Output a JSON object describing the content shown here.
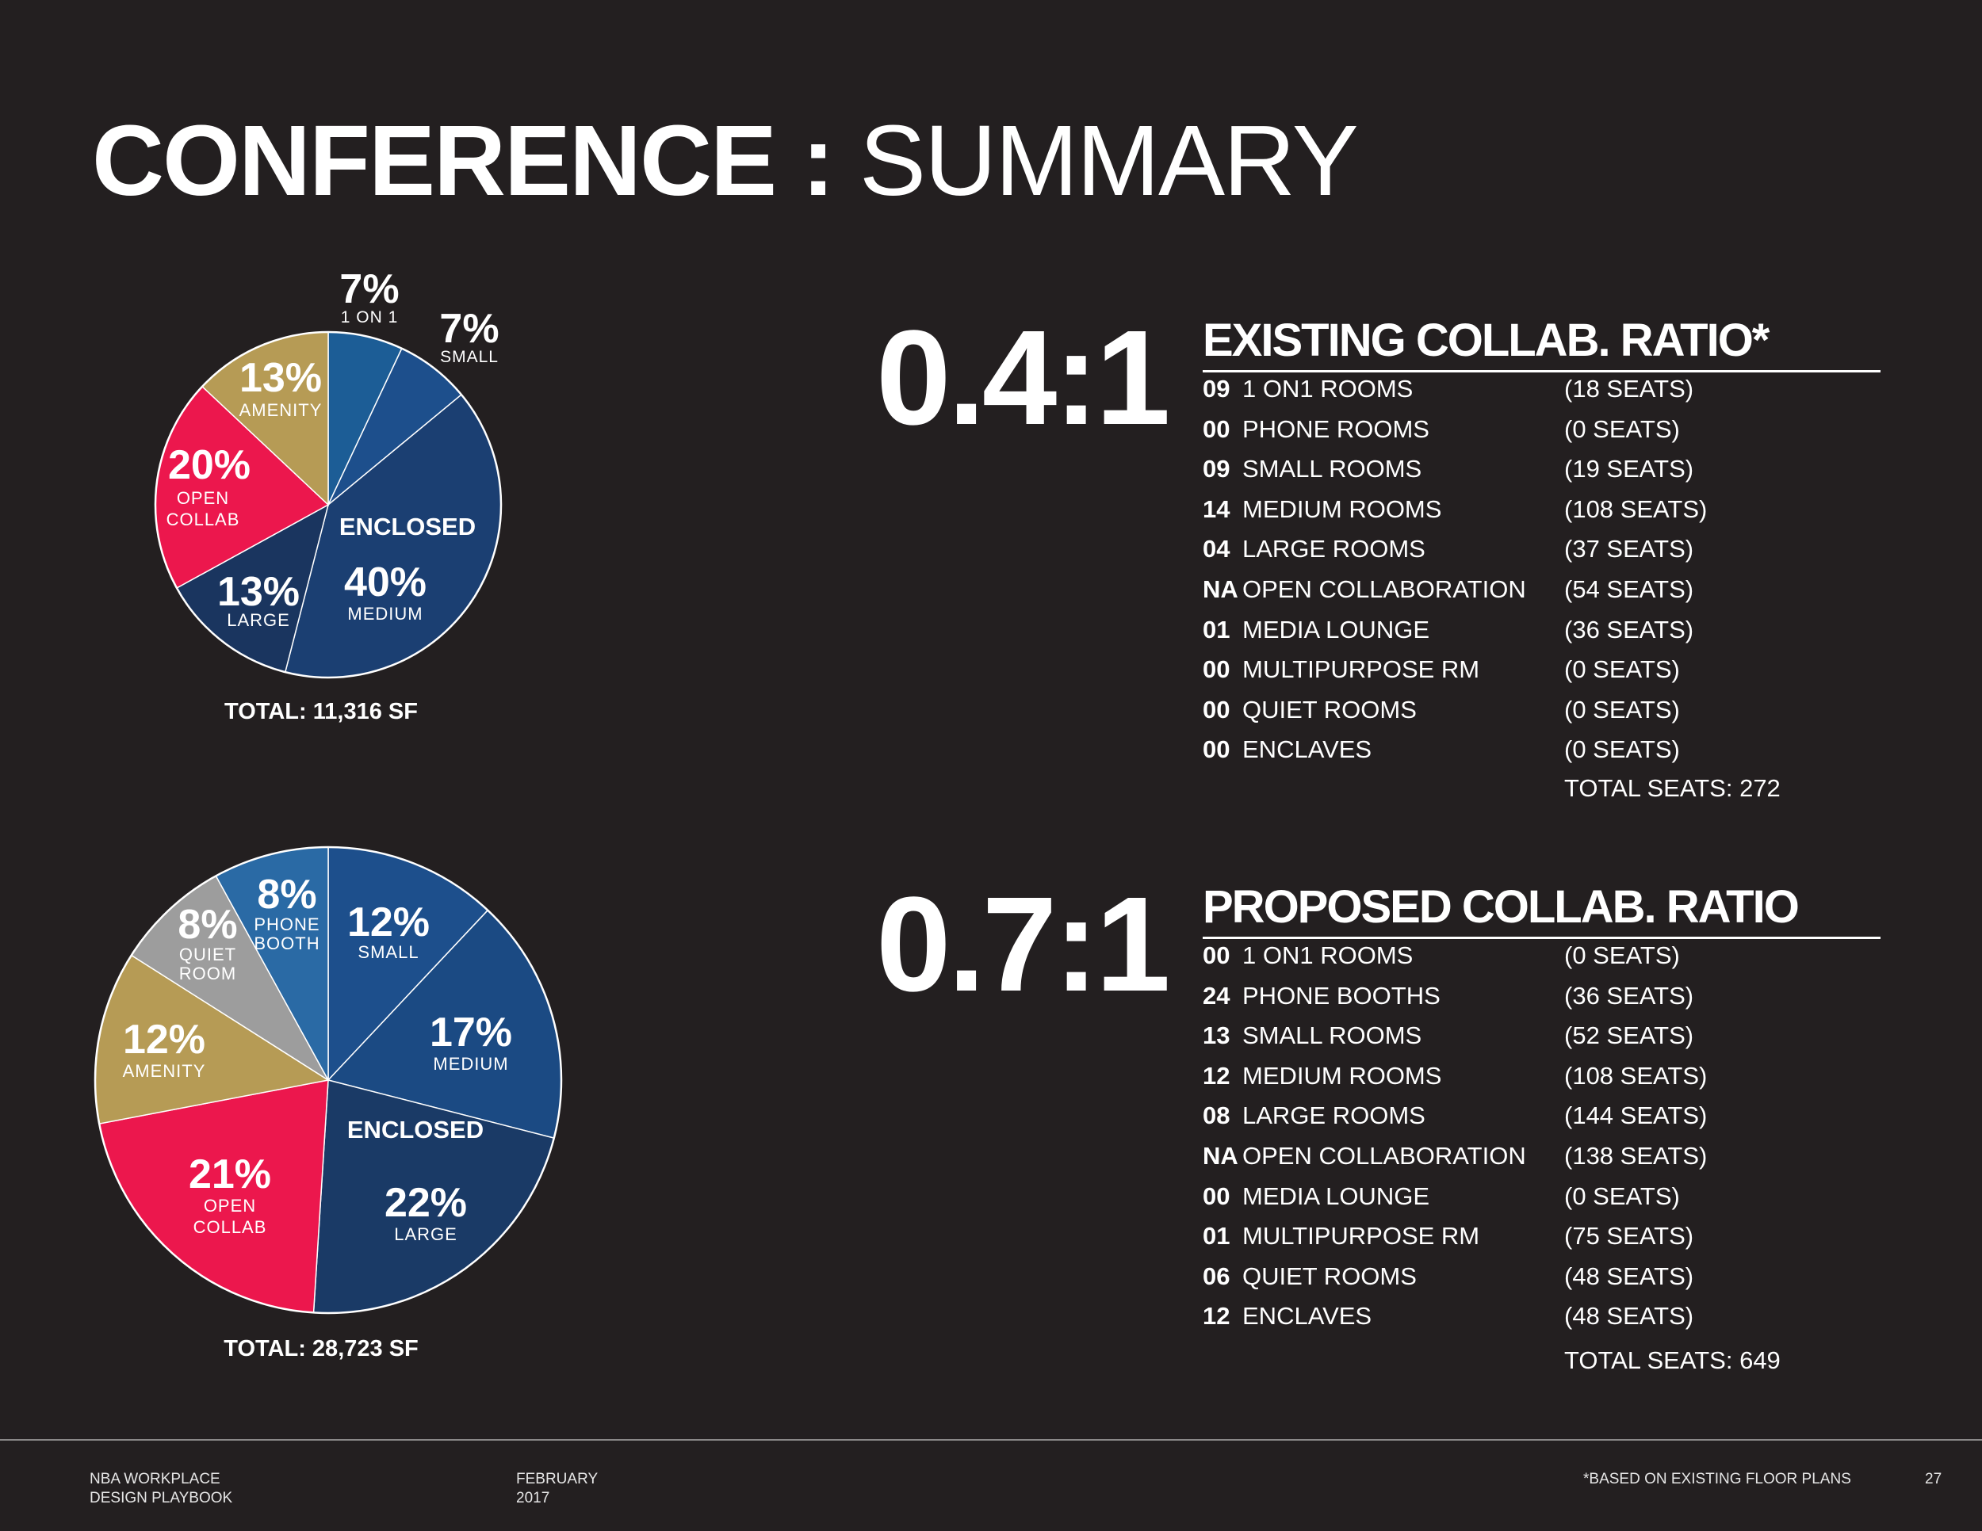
{
  "title": {
    "bold": "CONFERENCE :",
    "light": "SUMMARY"
  },
  "colors": {
    "background": "#231f20",
    "one_on_one": "#1c5d96",
    "small": "#1d4f8c",
    "medium": "#1b3f72",
    "large": "#1a355f",
    "open_collab": "#ec174d",
    "amenity": "#b69b55",
    "phone_booth": "#2a6aa5",
    "quiet_room": "#9d9d9d"
  },
  "chart_data": [
    {
      "type": "pie",
      "total_label": "TOTAL: 11,316 SF",
      "group_label": "ENCLOSED",
      "slices": [
        {
          "pct_label": "7%",
          "sub": [
            "1 ON 1"
          ],
          "value": 7,
          "color": "#1c5d96"
        },
        {
          "pct_label": "7%",
          "sub": [
            "SMALL"
          ],
          "value": 7,
          "color": "#1d4f8c"
        },
        {
          "pct_label": "40%",
          "sub": [
            "MEDIUM"
          ],
          "value": 40,
          "color": "#1b3f72"
        },
        {
          "pct_label": "13%",
          "sub": [
            "LARGE"
          ],
          "value": 13,
          "color": "#1a355f"
        },
        {
          "pct_label": "20%",
          "sub": [
            "OPEN",
            "COLLAB"
          ],
          "value": 20,
          "color": "#ec174d"
        },
        {
          "pct_label": "13%",
          "sub": [
            "AMENITY"
          ],
          "value": 13,
          "color": "#b69b55"
        }
      ]
    },
    {
      "type": "pie",
      "total_label": "TOTAL: 28,723 SF",
      "group_label": "ENCLOSED",
      "slices": [
        {
          "pct_label": "12%",
          "sub": [
            "SMALL"
          ],
          "value": 12,
          "color": "#1d4f8c"
        },
        {
          "pct_label": "17%",
          "sub": [
            "MEDIUM"
          ],
          "value": 17,
          "color": "#1b4a83"
        },
        {
          "pct_label": "22%",
          "sub": [
            "LARGE"
          ],
          "value": 22,
          "color": "#1a3a66"
        },
        {
          "pct_label": "21%",
          "sub": [
            "OPEN",
            "COLLAB"
          ],
          "value": 21,
          "color": "#ec174d"
        },
        {
          "pct_label": "12%",
          "sub": [
            "AMENITY"
          ],
          "value": 12,
          "color": "#b69b55"
        },
        {
          "pct_label": "8%",
          "sub": [
            "QUIET",
            "ROOM"
          ],
          "value": 8,
          "color": "#9d9d9d"
        },
        {
          "pct_label": "8%",
          "sub": [
            "PHONE",
            "BOOTH"
          ],
          "value": 8,
          "color": "#2a6aa5"
        }
      ]
    }
  ],
  "existing": {
    "ratio": "0.4:1",
    "heading": "EXISTING COLLAB. RATIO*",
    "rows": [
      {
        "count": "09",
        "name": "1 ON1 ROOMS",
        "seats": "(18 SEATS)"
      },
      {
        "count": "00",
        "name": "PHONE ROOMS",
        "seats": "(0 SEATS)"
      },
      {
        "count": "09",
        "name": "SMALL ROOMS",
        "seats": "(19 SEATS)"
      },
      {
        "count": "14",
        "name": "MEDIUM ROOMS",
        "seats": "(108 SEATS)"
      },
      {
        "count": "04",
        "name": "LARGE  ROOMS",
        "seats": "(37 SEATS)"
      },
      {
        "count": "NA",
        "name": "OPEN COLLABORATION",
        "seats": "(54 SEATS)"
      },
      {
        "count": "01",
        "name": "MEDIA LOUNGE",
        "seats": "(36 SEATS)"
      },
      {
        "count": "00",
        "name": "MULTIPURPOSE RM",
        "seats": "(0 SEATS)"
      },
      {
        "count": "00",
        "name": "QUIET ROOMS",
        "seats": "(0 SEATS)"
      },
      {
        "count": "00",
        "name": "ENCLAVES",
        "seats": "(0 SEATS)"
      }
    ],
    "total": "TOTAL SEATS: 272"
  },
  "proposed": {
    "ratio": "0.7:1",
    "heading": "PROPOSED COLLAB. RATIO",
    "rows": [
      {
        "count": "00",
        "name": "1 ON1 ROOMS",
        "seats": "(0 SEATS)"
      },
      {
        "count": "24",
        "name": "PHONE BOOTHS",
        "seats": "(36 SEATS)"
      },
      {
        "count": "13",
        "name": "SMALL ROOMS",
        "seats": "(52 SEATS)"
      },
      {
        "count": "12",
        "name": "MEDIUM ROOMS",
        "seats": "(108 SEATS)"
      },
      {
        "count": "08",
        "name": "LARGE  ROOMS",
        "seats": "(144 SEATS)"
      },
      {
        "count": "NA",
        "name": "OPEN COLLABORATION",
        "seats": "(138 SEATS)"
      },
      {
        "count": "00",
        "name": "MEDIA LOUNGE",
        "seats": "(0 SEATS)"
      },
      {
        "count": "01",
        "name": "MULTIPURPOSE RM",
        "seats": "(75 SEATS)"
      },
      {
        "count": "06",
        "name": "QUIET ROOMS",
        "seats": "(48 SEATS)"
      },
      {
        "count": "12",
        "name": "ENCLAVES",
        "seats": "(48 SEATS)"
      }
    ],
    "total": "TOTAL SEATS: 649"
  },
  "footer": {
    "org_line1": "NBA WORKPLACE",
    "org_line2": "DESIGN PLAYBOOK",
    "date_line1": "FEBRUARY",
    "date_line2": "2017",
    "note": "*BASED ON EXISTING FLOOR PLANS",
    "page": "27"
  }
}
